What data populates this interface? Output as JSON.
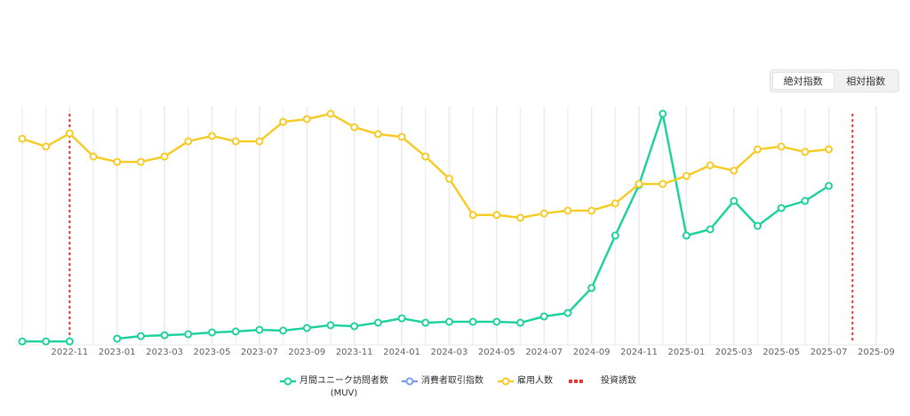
{
  "toggle": {
    "options": [
      "絶対指数",
      "相対指数"
    ],
    "selected": 0
  },
  "chart_data": {
    "type": "line",
    "x": [
      "2022-09",
      "2022-10",
      "2022-11",
      "2022-12",
      "2023-01",
      "2023-02",
      "2023-03",
      "2023-04",
      "2023-05",
      "2023-06",
      "2023-07",
      "2023-08",
      "2023-09",
      "2023-10",
      "2023-11",
      "2023-12",
      "2024-01",
      "2024-02",
      "2024-03",
      "2024-04",
      "2024-05",
      "2024-06",
      "2024-07",
      "2024-08",
      "2024-09",
      "2024-10",
      "2024-11",
      "2024-12",
      "2025-01",
      "2025-02",
      "2025-03",
      "2025-04",
      "2025-05",
      "2025-06",
      "2025-07"
    ],
    "xlim": [
      "2022-09",
      "2025-09"
    ],
    "xticks": [
      "2022-11",
      "2023-01",
      "2023-03",
      "2023-05",
      "2023-07",
      "2023-09",
      "2023-11",
      "2024-01",
      "2024-03",
      "2024-05",
      "2024-07",
      "2024-09",
      "2024-11",
      "2025-01",
      "2025-03",
      "2025-05",
      "2025-07",
      "2025-09"
    ],
    "ylim": [
      0,
      100
    ],
    "grid": true,
    "series": [
      {
        "name": "月間ユニーク訪問者数\n(MUV)",
        "color": "#22d3a0",
        "values": [
          1.5,
          1.5,
          1.5,
          null,
          2.7,
          3.8,
          4.2,
          4.6,
          5.4,
          5.8,
          6.5,
          6.2,
          7.3,
          8.5,
          8.1,
          9.6,
          11.5,
          9.6,
          10,
          10,
          10,
          9.6,
          12.3,
          13.8,
          24.6,
          47.3,
          69.2,
          100,
          47.3,
          50,
          62.3,
          51.5,
          59.2,
          62.3,
          68.8
        ]
      },
      {
        "name": "消費者取引指数",
        "color": "#7b9ef0",
        "values": [
          null,
          null,
          null,
          null,
          null,
          null,
          null,
          null,
          null,
          null,
          null,
          null,
          null,
          null,
          null,
          null,
          null,
          null,
          null,
          null,
          null,
          null,
          null,
          null,
          null,
          null,
          null,
          null,
          null,
          null,
          null,
          null,
          null,
          null,
          null
        ]
      },
      {
        "name": "雇用人数",
        "color": "#f5cc2a",
        "values": [
          89.2,
          85.8,
          91.5,
          81.5,
          79.2,
          79.2,
          81.5,
          88.1,
          90.4,
          88.1,
          88.1,
          96.5,
          97.7,
          100,
          94.2,
          91.2,
          90,
          81.5,
          71.9,
          56.2,
          56.2,
          55,
          56.9,
          58.1,
          58.1,
          61.2,
          69.6,
          69.6,
          73.1,
          77.7,
          75.4,
          84.6,
          85.8,
          83.5,
          84.6
        ]
      }
    ],
    "events": {
      "name": "投資誘致",
      "color": "#e53935",
      "x": [
        "2022-11",
        "2025-08"
      ]
    }
  }
}
